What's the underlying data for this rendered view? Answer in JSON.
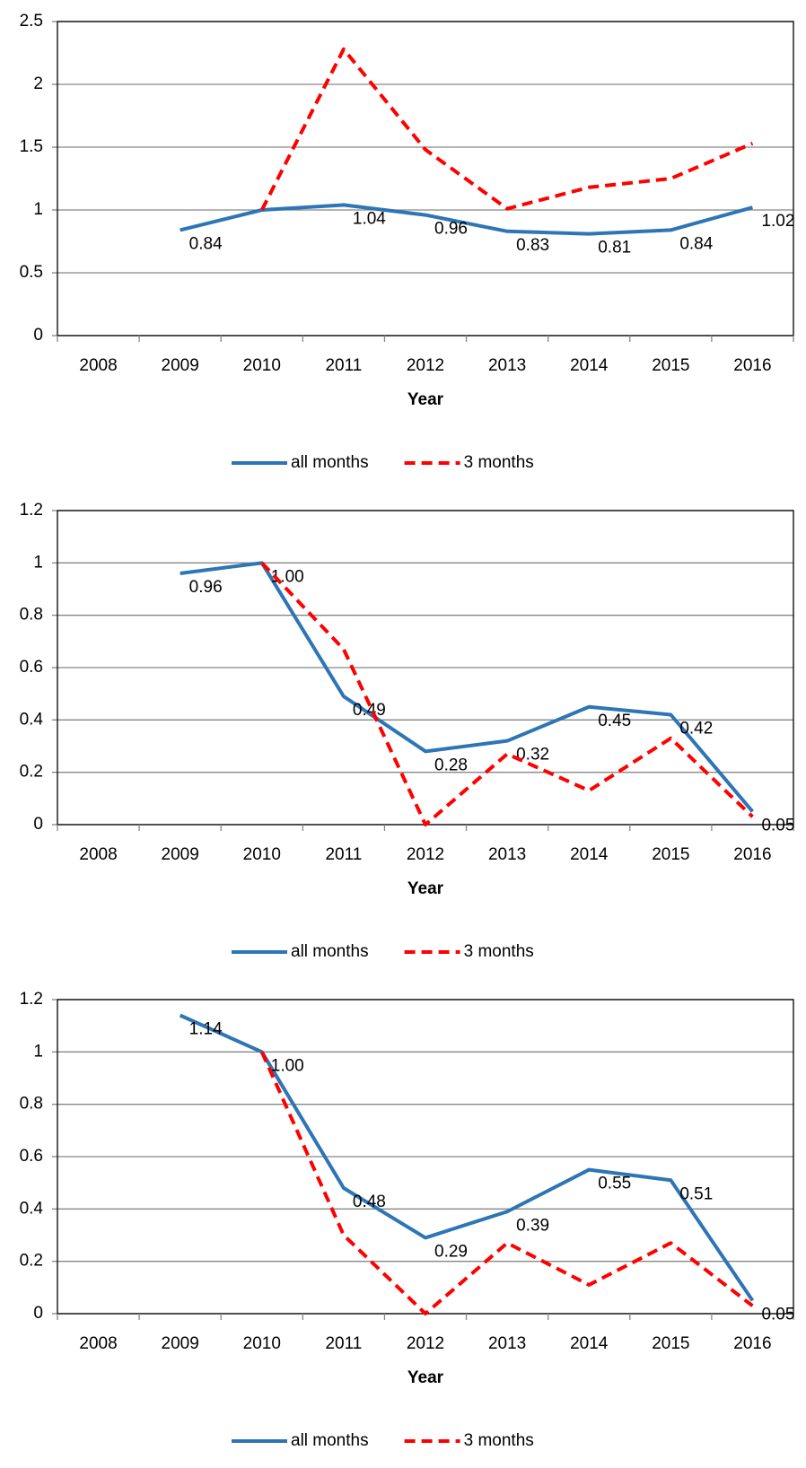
{
  "chart_data": [
    {
      "type": "line",
      "x_label": "Year",
      "categories": [
        "2008",
        "2009",
        "2010",
        "2011",
        "2012",
        "2013",
        "2014",
        "2015",
        "2016"
      ],
      "ylim": [
        0,
        2.5
      ],
      "yticks": [
        0,
        0.5,
        1,
        1.5,
        2,
        2.5
      ],
      "grid": true,
      "legend": "bottom",
      "series": [
        {
          "name": "all months",
          "color": "#2e75b6",
          "dashed": false,
          "values": [
            null,
            0.84,
            1.0,
            1.04,
            0.96,
            0.83,
            0.81,
            0.84,
            1.02
          ],
          "value_labels": [
            null,
            "0.84",
            null,
            "1.04",
            "0.96",
            "0.83",
            "0.81",
            "0.84",
            "1.02"
          ]
        },
        {
          "name": "3 months",
          "color": "#ff0000",
          "dashed": true,
          "values": [
            null,
            null,
            1.0,
            2.28,
            1.48,
            1.01,
            1.18,
            1.25,
            1.53
          ]
        }
      ]
    },
    {
      "type": "line",
      "x_label": "Year",
      "categories": [
        "2008",
        "2009",
        "2010",
        "2011",
        "2012",
        "2013",
        "2014",
        "2015",
        "2016"
      ],
      "ylim": [
        0,
        1.2
      ],
      "yticks": [
        0,
        0.2,
        0.4,
        0.6,
        0.8,
        1,
        1.2
      ],
      "grid": true,
      "legend": "bottom",
      "series": [
        {
          "name": "all months",
          "color": "#2e75b6",
          "dashed": false,
          "values": [
            null,
            0.96,
            1.0,
            0.49,
            0.28,
            0.32,
            0.45,
            0.42,
            0.05
          ],
          "value_labels": [
            null,
            "0.96",
            "1.00",
            "0.49",
            "0.28",
            "0.32",
            "0.45",
            "0.42",
            "0.05"
          ]
        },
        {
          "name": "3 months",
          "color": "#ff0000",
          "dashed": true,
          "values": [
            null,
            null,
            1.0,
            0.67,
            0.0,
            0.27,
            0.13,
            0.33,
            0.03
          ]
        }
      ]
    },
    {
      "type": "line",
      "x_label": "Year",
      "categories": [
        "2008",
        "2009",
        "2010",
        "2011",
        "2012",
        "2013",
        "2014",
        "2015",
        "2016"
      ],
      "ylim": [
        0,
        1.2
      ],
      "yticks": [
        0,
        0.2,
        0.4,
        0.6,
        0.8,
        1,
        1.2
      ],
      "grid": true,
      "legend": "bottom",
      "series": [
        {
          "name": "all months",
          "color": "#2e75b6",
          "dashed": false,
          "values": [
            null,
            1.14,
            1.0,
            0.48,
            0.29,
            0.39,
            0.55,
            0.51,
            0.05
          ],
          "value_labels": [
            null,
            "1.14",
            "1.00",
            "0.48",
            "0.29",
            "0.39",
            "0.55",
            "0.51",
            "0.05"
          ]
        },
        {
          "name": "3 months",
          "color": "#ff0000",
          "dashed": true,
          "values": [
            null,
            null,
            1.0,
            0.3,
            0.0,
            0.27,
            0.11,
            0.27,
            0.03
          ]
        }
      ]
    }
  ]
}
